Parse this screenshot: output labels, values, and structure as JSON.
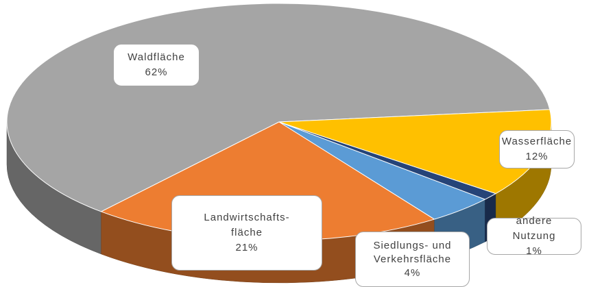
{
  "chart_data": {
    "type": "pie3d",
    "categories": [
      "Waldfläche",
      "Landwirtschafts-fläche",
      "Siedlungs- und Verkehrsfläche",
      "andere Nutzung",
      "Wasserfläche"
    ],
    "values": [
      62,
      21,
      4,
      1,
      12
    ],
    "value_labels": [
      "62%",
      "21%",
      "4%",
      "1%",
      "12%"
    ],
    "colors": [
      "#a5a5a5",
      "#ed7d31",
      "#5b9bd5",
      "#264478",
      "#ffc000"
    ]
  }
}
